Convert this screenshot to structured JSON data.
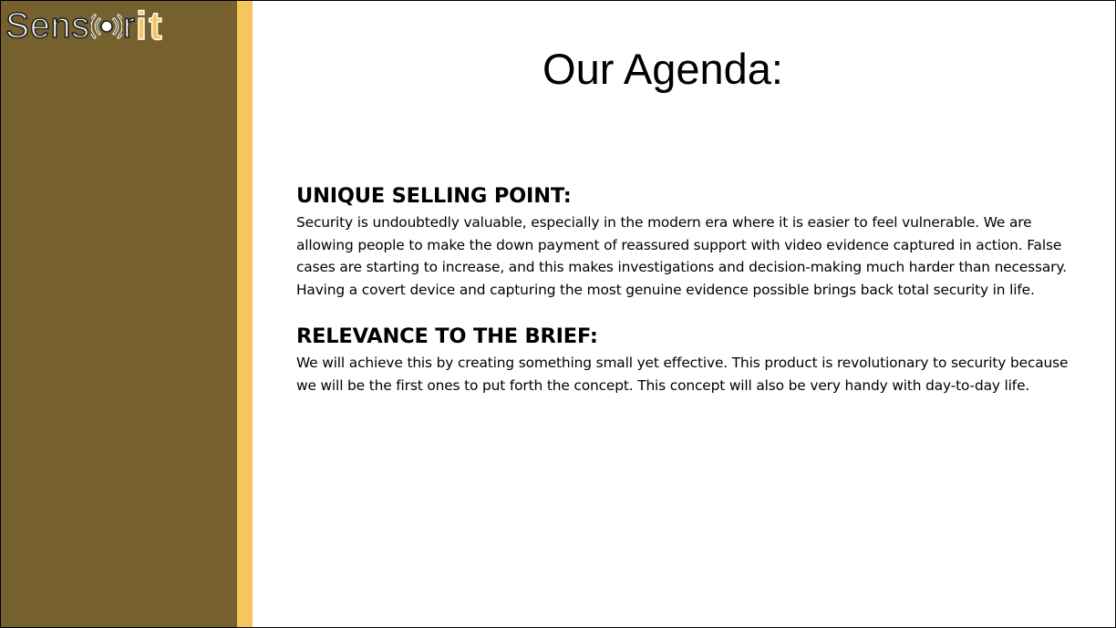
{
  "logo": {
    "text_before": "Sens",
    "text_middle": "r",
    "text_accent": "it",
    "sensor_icon": "signal-o-icon",
    "colors": {
      "accent": "#f6c65d",
      "sidebar": "#76612e"
    }
  },
  "slide": {
    "title": "Our Agenda:",
    "sections": [
      {
        "heading": "UNIQUE SELLING POINT:",
        "body": "Security is undoubtedly valuable, especially in the modern era where it is easier to feel vulnerable. We are allowing people to make the down payment of reassured support with video evidence captured in action. False cases are starting to increase, and this makes investigations and decision-making much harder than necessary. Having a covert device and capturing the most genuine evidence possible brings back total security in life."
      },
      {
        "heading": "RELEVANCE TO THE BRIEF:",
        "body": "We will achieve this by creating something small yet effective. This product is revolutionary to security because we will be the first ones to put forth the concept. This concept will also be very handy with day-to-day life."
      }
    ]
  }
}
